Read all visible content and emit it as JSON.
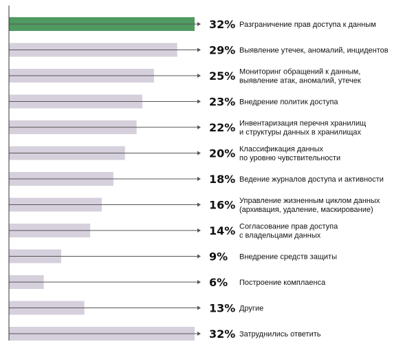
{
  "chart_data": {
    "type": "bar",
    "orientation": "horizontal",
    "title": "",
    "xlabel": "",
    "ylabel": "",
    "xlim": [
      0,
      32
    ],
    "grid": false,
    "colors": {
      "highlight": "#4f9a61",
      "bar": "#d5d0dc",
      "line": "#555555",
      "axis": "#333333",
      "text": "#111111"
    },
    "items": [
      {
        "value": 32,
        "value_label": "32%",
        "label_lines": [
          "Разграничение прав доступа к данным"
        ],
        "highlight": true
      },
      {
        "value": 29,
        "value_label": "29%",
        "label_lines": [
          "Выявление утечек, аномалий, инцидентов"
        ],
        "highlight": false
      },
      {
        "value": 25,
        "value_label": "25%",
        "label_lines": [
          "Мониторинг обращений к данным,",
          "выявление атак, аномалий, утечек"
        ],
        "highlight": false
      },
      {
        "value": 23,
        "value_label": "23%",
        "label_lines": [
          "Внедрение политик доступа"
        ],
        "highlight": false
      },
      {
        "value": 22,
        "value_label": "22%",
        "label_lines": [
          "Инвентаризация перечня хранилищ",
          "и структуры данных в хранилищах"
        ],
        "highlight": false
      },
      {
        "value": 20,
        "value_label": "20%",
        "label_lines": [
          "Классификация данных",
          "по уровню чувствительности"
        ],
        "highlight": false
      },
      {
        "value": 18,
        "value_label": "18%",
        "label_lines": [
          "Ведение журналов доступа и активности"
        ],
        "highlight": false
      },
      {
        "value": 16,
        "value_label": "16%",
        "label_lines": [
          "Управление жизненным циклом данных",
          "(архивация, удаление, маскирование)"
        ],
        "highlight": false
      },
      {
        "value": 14,
        "value_label": "14%",
        "label_lines": [
          "Согласование прав доступа",
          "с владельцами данных"
        ],
        "highlight": false
      },
      {
        "value": 9,
        "value_label": "9%",
        "label_lines": [
          "Внедрение средств защиты"
        ],
        "highlight": false
      },
      {
        "value": 6,
        "value_label": "6%",
        "label_lines": [
          "Построение комплаенса"
        ],
        "highlight": false
      },
      {
        "value": 13,
        "value_label": "13%",
        "label_lines": [
          "Другие"
        ],
        "highlight": false
      },
      {
        "value": 32,
        "value_label": "32%",
        "label_lines": [
          "Затруднились ответить"
        ],
        "highlight": false
      }
    ]
  }
}
